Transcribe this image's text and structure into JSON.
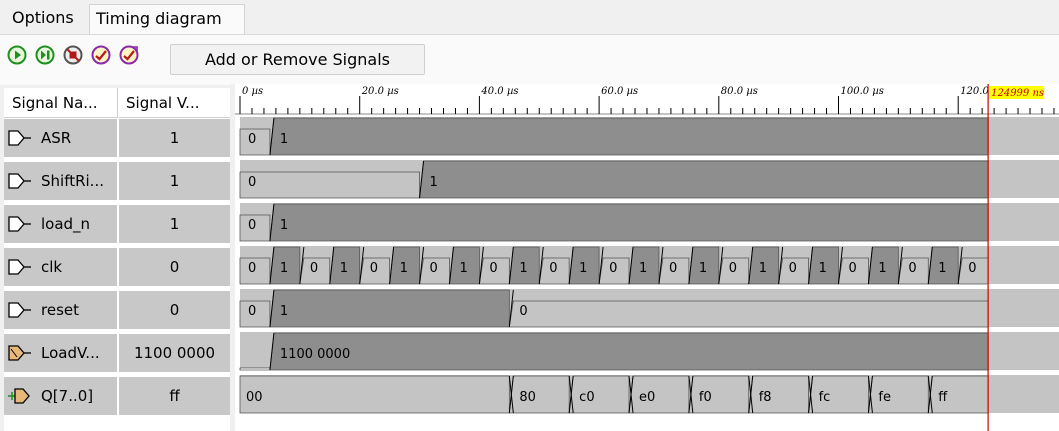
{
  "tabs": [
    {
      "label": "Options"
    },
    {
      "label": "Timing diagram"
    }
  ],
  "toolbar": {
    "icons": [
      "play-icon",
      "step-icon",
      "stop-icon",
      "zoom-in-icon",
      "zoom-out-icon"
    ],
    "add_remove_label": "Add or Remove Signals"
  },
  "table": {
    "header_name": "Signal Na...",
    "header_value": "Signal V..."
  },
  "signals": [
    {
      "name": "ASR",
      "value": "1",
      "icon": "input-pin-icon"
    },
    {
      "name": "ShiftRi...",
      "value": "1",
      "icon": "input-pin-icon"
    },
    {
      "name": "load_n",
      "value": "1",
      "icon": "input-pin-icon"
    },
    {
      "name": "clk",
      "value": "0",
      "icon": "input-pin-icon"
    },
    {
      "name": "reset",
      "value": "0",
      "icon": "input-pin-icon"
    },
    {
      "name": "LoadV...",
      "value": "1100 0000",
      "icon": "bus-input-pin-icon"
    },
    {
      "name": "Q[7..0]",
      "value": "ff",
      "icon": "bus-output-pin-icon"
    }
  ],
  "timeline": {
    "unit": "µs",
    "tick_labels": [
      "0 µs",
      "20.0 µs",
      "40.0 µs",
      "60.0 µs",
      "80.0 µs",
      "100.0 µs",
      "120.0"
    ],
    "cursor_label": "124999 ns",
    "cursor_color": "#cc0000"
  },
  "waveforms": [
    {
      "kind": "bit",
      "segments": [
        {
          "v": "0",
          "t0": 0,
          "t1": 5
        },
        {
          "v": "1",
          "t0": 5,
          "t1": 125
        }
      ]
    },
    {
      "kind": "bit",
      "segments": [
        {
          "v": "0",
          "t0": 0,
          "t1": 30
        },
        {
          "v": "1",
          "t0": 30,
          "t1": 125
        }
      ]
    },
    {
      "kind": "bit",
      "segments": [
        {
          "v": "0",
          "t0": 0,
          "t1": 5
        },
        {
          "v": "1",
          "t0": 5,
          "t1": 125
        }
      ]
    },
    {
      "kind": "bit",
      "segments": [
        {
          "v": "0",
          "t0": 0,
          "t1": 5
        },
        {
          "v": "1",
          "t0": 5,
          "t1": 10
        },
        {
          "v": "0",
          "t0": 10,
          "t1": 15
        },
        {
          "v": "1",
          "t0": 15,
          "t1": 20
        },
        {
          "v": "0",
          "t0": 20,
          "t1": 25
        },
        {
          "v": "1",
          "t0": 25,
          "t1": 30
        },
        {
          "v": "0",
          "t0": 30,
          "t1": 35
        },
        {
          "v": "1",
          "t0": 35,
          "t1": 40
        },
        {
          "v": "0",
          "t0": 40,
          "t1": 45
        },
        {
          "v": "1",
          "t0": 45,
          "t1": 50
        },
        {
          "v": "0",
          "t0": 50,
          "t1": 55
        },
        {
          "v": "1",
          "t0": 55,
          "t1": 60
        },
        {
          "v": "0",
          "t0": 60,
          "t1": 65
        },
        {
          "v": "1",
          "t0": 65,
          "t1": 70
        },
        {
          "v": "0",
          "t0": 70,
          "t1": 75
        },
        {
          "v": "1",
          "t0": 75,
          "t1": 80
        },
        {
          "v": "0",
          "t0": 80,
          "t1": 85
        },
        {
          "v": "1",
          "t0": 85,
          "t1": 90
        },
        {
          "v": "0",
          "t0": 90,
          "t1": 95
        },
        {
          "v": "1",
          "t0": 95,
          "t1": 100
        },
        {
          "v": "0",
          "t0": 100,
          "t1": 105
        },
        {
          "v": "1",
          "t0": 105,
          "t1": 110
        },
        {
          "v": "0",
          "t0": 110,
          "t1": 115
        },
        {
          "v": "1",
          "t0": 115,
          "t1": 120
        },
        {
          "v": "0",
          "t0": 120,
          "t1": 125
        }
      ]
    },
    {
      "kind": "bit",
      "segments": [
        {
          "v": "0",
          "t0": 0,
          "t1": 5
        },
        {
          "v": "1",
          "t0": 5,
          "t1": 45
        },
        {
          "v": "0",
          "t0": 45,
          "t1": 125
        }
      ]
    },
    {
      "kind": "bus",
      "segments": [
        {
          "v": "",
          "t0": 0,
          "t1": 5
        },
        {
          "v": "1100 0000",
          "t0": 5,
          "t1": 125
        }
      ]
    },
    {
      "kind": "bus",
      "segments": [
        {
          "v": "00",
          "t0": 0,
          "t1": 45
        },
        {
          "v": "80",
          "t0": 45,
          "t1": 55
        },
        {
          "v": "c0",
          "t0": 55,
          "t1": 65
        },
        {
          "v": "e0",
          "t0": 65,
          "t1": 75
        },
        {
          "v": "f0",
          "t0": 75,
          "t1": 85
        },
        {
          "v": "f8",
          "t0": 85,
          "t1": 95
        },
        {
          "v": "fc",
          "t0": 95,
          "t1": 105
        },
        {
          "v": "fe",
          "t0": 105,
          "t1": 115
        },
        {
          "v": "ff",
          "t0": 115,
          "t1": 125
        }
      ]
    }
  ],
  "colors": {
    "low_fill": "#c4c4c4",
    "high_fill": "#8e8e8e",
    "bus_fill": "#c4c4c4",
    "row_bg": "#c8c8c8",
    "cursor": "#cc0000"
  }
}
